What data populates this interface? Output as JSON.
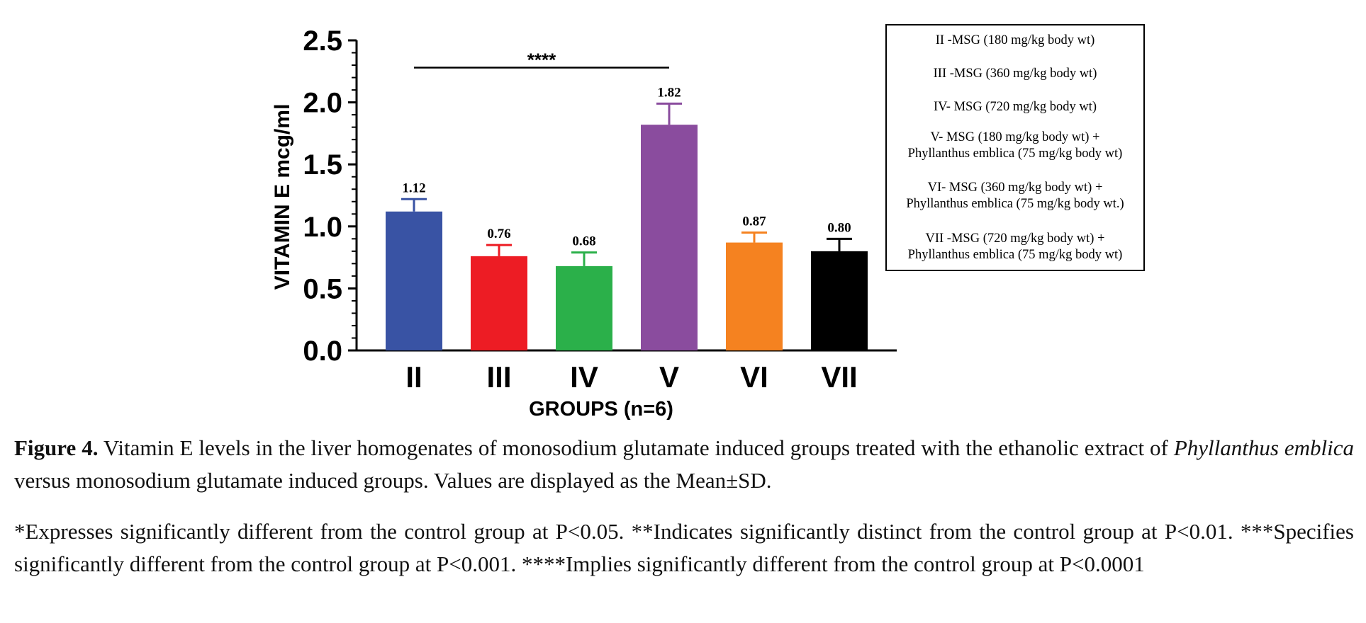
{
  "chart_data": {
    "type": "bar",
    "xlabel": "GROUPS (n=6)",
    "ylabel": "VITAMIN E mcg/ml",
    "ylim": [
      0,
      2.5
    ],
    "yticks": [
      "0.0",
      "0.5",
      "1.0",
      "1.5",
      "2.0",
      "2.5"
    ],
    "categories": [
      "II",
      "III",
      "IV",
      "V",
      "VI",
      "VII"
    ],
    "values": [
      1.12,
      0.76,
      0.68,
      1.82,
      0.87,
      0.8
    ],
    "value_labels": [
      "1.12",
      "0.76",
      "0.68",
      "1.82",
      "0.87",
      "0.80"
    ],
    "error_upper": [
      1.22,
      0.85,
      0.79,
      1.99,
      0.95,
      0.9
    ],
    "colors": [
      "#3953a4",
      "#ed1c24",
      "#2bb04a",
      "#8a4c9e",
      "#f58220",
      "#000000"
    ],
    "significance": {
      "label": "****",
      "from_category": "II",
      "to_category": "V",
      "y": 2.28
    },
    "legend": {
      "placement": "right",
      "entries": [
        [
          "II -MSG (180 mg/kg body wt)"
        ],
        [
          "III -MSG (360 mg/kg body wt)"
        ],
        [
          "IV- MSG (720 mg/kg body wt)"
        ],
        [
          "V- MSG (180 mg/kg body wt) +",
          "Phyllanthus emblica  (75 mg/kg body wt)"
        ],
        [
          "VI- MSG (360 mg/kg body wt) +",
          "Phyllanthus emblica (75 mg/kg body wt.)"
        ],
        [
          "VII -MSG (720 mg/kg body wt)  +",
          "Phyllanthus emblica  (75 mg/kg body wt)"
        ]
      ]
    }
  },
  "caption": {
    "label": "Figure 4.",
    "text_before": " Vitamin E levels in the liver homogenates of monosodium glutamate induced groups treated with the ethanolic extract of ",
    "italic": "Phyllanthus emblica",
    "text_after": " versus monosodium glutamate induced groups. Values are displayed as the Mean±SD."
  },
  "note": " *Expresses significantly different from the control group at P<0.05. **Indicates significantly distinct from the control group at P<0.01. ***Specifies significantly different from the control group at P<0.001. ****Implies significantly different from the control group at P<0.0001"
}
